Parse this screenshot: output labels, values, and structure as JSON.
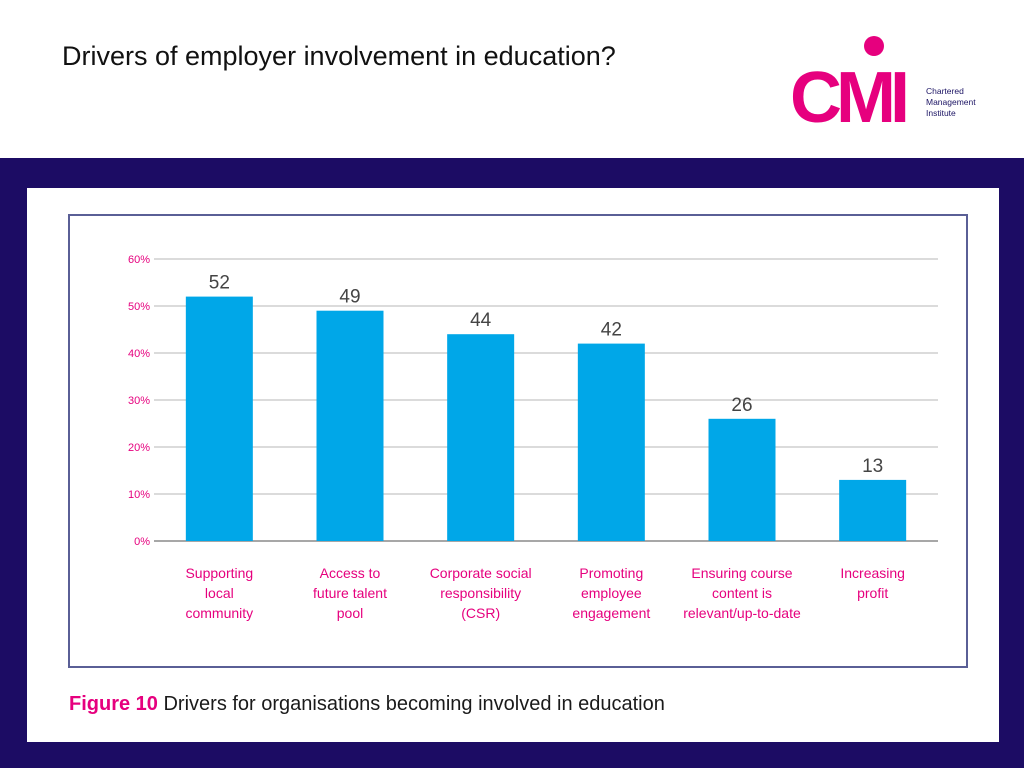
{
  "slide": {
    "title": "Drivers of employer involvement in education?"
  },
  "logo": {
    "acronym": "CMI",
    "line1": "Chartered",
    "line2": "Management",
    "line3": "Institute",
    "colors": {
      "magenta": "#e6007e",
      "navy": "#1c1464"
    }
  },
  "caption": {
    "figure": "Figure 10",
    "text": "Drivers for organisations becoming involved in education"
  },
  "colors": {
    "band": "#1c0c64",
    "bar": "#00a7e8",
    "tick_label": "#e6007e",
    "gridline": "#b7b7b7"
  },
  "chart_data": {
    "type": "bar",
    "categories": [
      [
        "Supporting",
        "local",
        "community"
      ],
      [
        "Access to",
        "future talent",
        "pool"
      ],
      [
        "Corporate social",
        "responsibility",
        "(CSR)"
      ],
      [
        "Promoting",
        "employee",
        "engagement"
      ],
      [
        "Ensuring course",
        "content is",
        "relevant/up-to-date"
      ],
      [
        "Increasing",
        "profit"
      ]
    ],
    "values": [
      52,
      49,
      44,
      42,
      26,
      13
    ],
    "data_labels": [
      "52",
      "49",
      "44",
      "42",
      "26",
      "13"
    ],
    "yticks": [
      "0%",
      "10%",
      "20%",
      "30%",
      "40%",
      "50%",
      "60%"
    ],
    "ylim": [
      0,
      60
    ],
    "grid": true,
    "legend": "none"
  }
}
